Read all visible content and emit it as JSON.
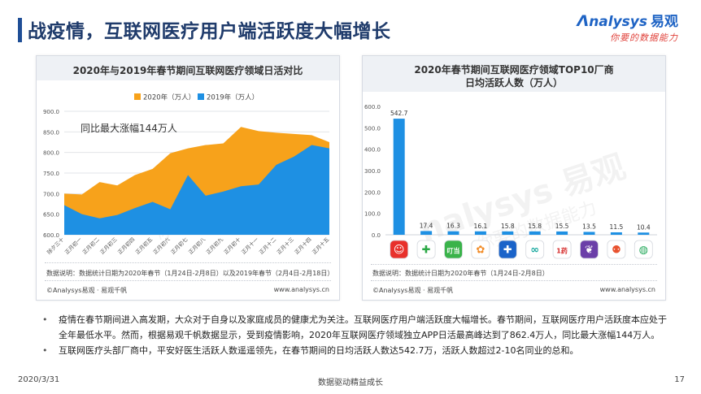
{
  "page": {
    "title": "战疫情，互联网医疗用户端活跃度大幅增长",
    "logo_main": "nalysys",
    "logo_cn": "易观",
    "logo_sub": "你要的数据能力",
    "watermark_en": "nalysys",
    "watermark_cn": "易观",
    "watermark_sub": "你要的数据能力"
  },
  "left_panel": {
    "title": "2020年与2019年春节期间互联网医疗领域日活对比",
    "annotation": "同比最大涨幅144万人",
    "note": "数据说明：数据统计日期为2020年春节（1月24日-2月8日）以及2019年春节（2月4日-2月18日）",
    "source": "©Analysys易观 · 易观千帆",
    "url": "www.analysys.cn"
  },
  "right_panel": {
    "title_line1": "2020年春节期间互联网医疗领域TOP10厂商",
    "title_line2": "日均活跃人数（万人）",
    "note": "数据说明：数据统计日期为2020年春节（1月24日-2月8日）",
    "source": "©Analysys易观 · 易观千帆",
    "url": "www.analysys.cn"
  },
  "bullets": [
    "疫情在春节期间进入高发期，大众对于自身以及家庭成员的健康尤为关注。互联网医疗用户端活跃度大幅增长。春节期间，互联网医疗用户活跃度本应处于全年最低水平。然而，根据易观千帆数据显示，受到疫情影响，2020年互联网医疗领域独立APP日活最高峰达到了862.4万人，同比最大涨幅144万人。",
    "互联网医疗头部厂商中，平安好医生活跃人数遥遥领先，在春节期间的日均活跃人数达542.7万，活跃人数超过2-10名同业的总和。"
  ],
  "footer": {
    "date": "2020/3/31",
    "center": "数据驱动精益成长",
    "page": "17"
  },
  "chart_data": [
    {
      "type": "area",
      "title": "2020年与2019年春节期间互联网医疗领域日活对比",
      "categories": [
        "除夕三十",
        "正月初一",
        "正月初二",
        "正月初三",
        "正月初四",
        "正月初五",
        "正月初六",
        "正月初七",
        "正月初八",
        "正月初九",
        "正月初十",
        "正月十一",
        "正月十二",
        "正月十三",
        "正月十四",
        "正月十五"
      ],
      "series": [
        {
          "name": "2020年（万人）",
          "color": "#f7a21b",
          "values": [
            700,
            698,
            728,
            720,
            745,
            760,
            798,
            810,
            818,
            822,
            862,
            852,
            848,
            845,
            842,
            825
          ]
        },
        {
          "name": "2019年（万人）",
          "color": "#1e90e3",
          "values": [
            672,
            650,
            640,
            648,
            665,
            680,
            662,
            745,
            695,
            705,
            718,
            722,
            770,
            790,
            818,
            810
          ]
        }
      ],
      "ylim": [
        600,
        900
      ],
      "yticks": [
        "600.0",
        "650.0",
        "700.0",
        "750.0",
        "800.0",
        "850.0",
        "900.0"
      ],
      "legend": "top",
      "grid": true
    },
    {
      "type": "bar",
      "title": "2020年春节期间互联网医疗领域TOP10厂商 日均活跃人数（万人）",
      "values": [
        542.7,
        17.4,
        16.3,
        16.1,
        15.8,
        15.8,
        15.5,
        13.5,
        11.5,
        10.4
      ],
      "value_labels": [
        "542.7",
        "17.4",
        "16.3",
        "16.1",
        "15.8",
        "15.8",
        "15.5",
        "13.5",
        "11.5",
        "10.4"
      ],
      "ylim": [
        0,
        600
      ],
      "yticks": [
        "0.0",
        "100.0",
        "200.0",
        "300.0",
        "400.0",
        "500.0",
        "600.0"
      ],
      "bar_color": "#1e90e3",
      "grid": false
    }
  ],
  "app_icons": [
    {
      "name": "pingan-haoyisheng-icon",
      "bg": "#e8302b",
      "glyph": "☺",
      "fg": "#ffffff"
    },
    {
      "name": "pharmacy-cross-icon",
      "bg": "#ffffff",
      "glyph": "✚",
      "fg": "#2aa845"
    },
    {
      "name": "dingdang-icon",
      "bg": "#3ab34a",
      "glyph": "叮当",
      "fg": "#ffffff"
    },
    {
      "name": "flower-petal-icon",
      "bg": "#ffffff",
      "glyph": "✿",
      "fg": "#f28c28"
    },
    {
      "name": "hospital-cross-icon",
      "bg": "#1a63c9",
      "glyph": "✚",
      "fg": "#ffffff"
    },
    {
      "name": "infinity-loop-icon",
      "bg": "#ffffff",
      "glyph": "∞",
      "fg": "#1aa9a0"
    },
    {
      "name": "one-medicine-icon",
      "bg": "#ffffff",
      "glyph": "1药",
      "fg": "#d62d2d"
    },
    {
      "name": "purple-leaf-icon",
      "bg": "#6b3fa8",
      "glyph": "❦",
      "fg": "#ffffff"
    },
    {
      "name": "people-care-icon",
      "bg": "#ffffff",
      "glyph": "⚉",
      "fg": "#e8522f"
    },
    {
      "name": "green-circle-icon",
      "bg": "#ffffff",
      "glyph": "◍",
      "fg": "#23a85a"
    }
  ]
}
